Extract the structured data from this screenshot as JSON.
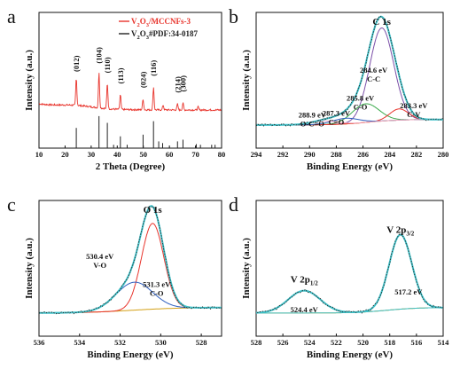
{
  "figure": {
    "background": "#ffffff"
  },
  "chart_data": [
    {
      "panel": "a",
      "type": "line",
      "xlabel": "2 Theta (Degree)",
      "ylabel": "Intensity (a.u.)",
      "xlim": [
        10,
        80
      ],
      "xticks": [
        10,
        20,
        30,
        40,
        50,
        60,
        70,
        80
      ],
      "legend": [
        {
          "label": "V2O3/MCCNFs-3",
          "base": "V",
          "s1": "2",
          "mid": "O",
          "s2": "3",
          "tail": "/MCCNFs-3",
          "color": "#e8342c"
        },
        {
          "label": "V2O3#PDF:34-0187",
          "base": "V",
          "s1": "2",
          "mid": "O",
          "s2": "3",
          "tail": "#PDF:34-0187",
          "color": "#222222"
        }
      ],
      "peak_labels": [
        {
          "text": "(012)",
          "x": 24.3
        },
        {
          "text": "(104)",
          "x": 33.0
        },
        {
          "text": "(110)",
          "x": 36.2
        },
        {
          "text": "(113)",
          "x": 41.2
        },
        {
          "text": "(024)",
          "x": 49.9
        },
        {
          "text": "(116)",
          "x": 53.9
        },
        {
          "text": "(214)",
          "x": 63.1
        },
        {
          "text": "(300)",
          "x": 65.2
        }
      ],
      "series": [
        {
          "name": "V2O3/MCCNFs-3",
          "color": "#e8342c",
          "peaks": [
            [
              24.3,
              0.55
            ],
            [
              33.0,
              0.72
            ],
            [
              36.2,
              0.52
            ],
            [
              41.2,
              0.3
            ],
            [
              49.9,
              0.22
            ],
            [
              53.9,
              0.46
            ],
            [
              57.6,
              0.1
            ],
            [
              63.1,
              0.12
            ],
            [
              65.2,
              0.14
            ],
            [
              71.0,
              0.06
            ]
          ]
        },
        {
          "name": "V2O3#PDF:34-0187",
          "color": "#222222",
          "sticks": [
            [
              24.3,
              0.6
            ],
            [
              33.0,
              0.95
            ],
            [
              36.2,
              0.75
            ],
            [
              38.6,
              0.1
            ],
            [
              41.2,
              0.35
            ],
            [
              43.8,
              0.1
            ],
            [
              49.9,
              0.4
            ],
            [
              53.9,
              0.8
            ],
            [
              55.9,
              0.2
            ],
            [
              57.4,
              0.15
            ],
            [
              63.1,
              0.2
            ],
            [
              65.2,
              0.25
            ],
            [
              70.3,
              0.12
            ],
            [
              71.9,
              0.1
            ],
            [
              76.2,
              0.1
            ],
            [
              77.5,
              0.1
            ]
          ]
        }
      ]
    },
    {
      "panel": "b",
      "type": "line",
      "title": "C 1s",
      "xlabel": "Binding Energy (eV)",
      "ylabel": "Intensity (a.u.)",
      "xlim": [
        294,
        280
      ],
      "xticks": [
        294,
        292,
        290,
        288,
        286,
        284,
        282,
        280
      ],
      "components": [
        {
          "center": 284.6,
          "height": 1.0,
          "width": 0.9,
          "color": "#7b4fa8"
        },
        {
          "center": 285.8,
          "height": 0.2,
          "width": 1.0,
          "color": "#3aaa4a"
        },
        {
          "center": 283.3,
          "height": 0.12,
          "width": 0.7,
          "color": "#e8342c"
        },
        {
          "center": 287.3,
          "height": 0.06,
          "width": 1.0,
          "color": "#2f5fbf"
        },
        {
          "center": 288.9,
          "height": 0.04,
          "width": 1.0,
          "color": "#f2a9c0"
        }
      ],
      "baseline_color": "#d4a017",
      "envelope_color": "#3fc1c9",
      "annotations": [
        {
          "lines": [
            "284.6 eV",
            "C-C"
          ],
          "x": 285.2,
          "y": 0.58
        },
        {
          "lines": [
            "285.8 eV",
            "C-O"
          ],
          "x": 286.2,
          "y": 0.28
        },
        {
          "lines": [
            "283.3 eV",
            "C-V"
          ],
          "x": 282.2,
          "y": 0.2
        },
        {
          "lines": [
            "287.3 eV",
            "C=O"
          ],
          "x": 288.0,
          "y": 0.12
        },
        {
          "lines": [
            "288.9 eV",
            "O-C=O"
          ],
          "x": 289.8,
          "y": 0.1
        }
      ]
    },
    {
      "panel": "c",
      "type": "line",
      "title": "O 1s",
      "xlabel": "Binding Energy (eV)",
      "ylabel": "Intensity (a.u.)",
      "xlim": [
        536,
        527
      ],
      "xticks": [
        536,
        534,
        532,
        530,
        528
      ],
      "components": [
        {
          "center": 530.4,
          "height": 0.92,
          "width": 0.55,
          "color": "#e8342c"
        },
        {
          "center": 531.3,
          "height": 0.3,
          "width": 0.9,
          "color": "#2f5fbf"
        }
      ],
      "baseline_color": "#d4a017",
      "envelope_color": "#3fc1c9",
      "annotations": [
        {
          "lines": [
            "530.4 eV",
            "V-O"
          ],
          "x": 533.0,
          "y": 0.6
        },
        {
          "lines": [
            "531.3 eV",
            "C-O"
          ],
          "x": 530.2,
          "y": 0.3
        }
      ]
    },
    {
      "panel": "d",
      "type": "line",
      "xlabel": "Binding Energy (eV)",
      "ylabel": "Intensity (a.u.)",
      "xlim": [
        528,
        514
      ],
      "xticks": [
        528,
        526,
        524,
        522,
        520,
        518,
        516,
        514
      ],
      "components": [
        {
          "center": 517.2,
          "height": 0.8,
          "width": 0.85,
          "color": "#3fc1c9"
        },
        {
          "center": 524.4,
          "height": 0.24,
          "width": 1.2,
          "color": "#3fc1c9"
        }
      ],
      "baseline_color": "#d4a017",
      "envelope_color": "#3fc1c9",
      "peak_titles": [
        {
          "base": "V 2p",
          "sub": "3/2",
          "x": 517.2,
          "y": 0.88
        },
        {
          "base": "V 2p",
          "sub": "1/2",
          "x": 524.4,
          "y": 0.35
        }
      ],
      "annotations": [
        {
          "lines": [
            "517.2 eV"
          ],
          "x": 516.6,
          "y": 0.22
        },
        {
          "lines": [
            "524.4 eV"
          ],
          "x": 524.4,
          "y": 0.03
        }
      ]
    }
  ]
}
